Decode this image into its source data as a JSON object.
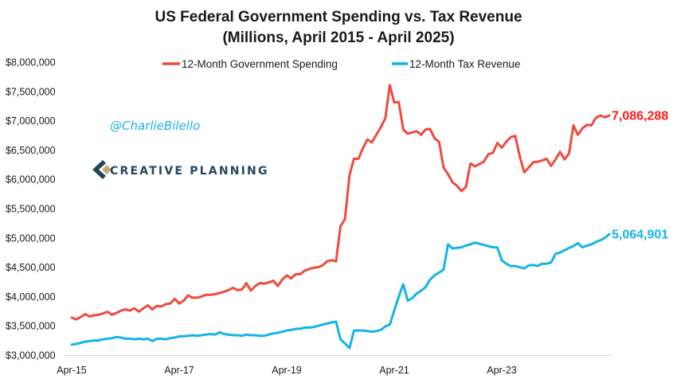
{
  "chart_data": {
    "type": "line",
    "title": "US Federal Government Spending vs. Tax Revenue",
    "subtitle": "(Millions, April 2015 - April 2025)",
    "xlabel": "",
    "ylabel": "",
    "x_tick_labels": [
      "Apr-15",
      "Apr-17",
      "Apr-19",
      "Apr-21",
      "Apr-23"
    ],
    "y_tick_labels": [
      "$3,000,000",
      "$3,500,000",
      "$4,000,000",
      "$4,500,000",
      "$5,000,000",
      "$5,500,000",
      "$6,000,000",
      "$6,500,000",
      "$7,000,000",
      "$7,500,000",
      "$8,000,000"
    ],
    "ylim": [
      3000000,
      8000000
    ],
    "x_range": [
      "2015-04",
      "2025-04"
    ],
    "frequency": "monthly",
    "grid": false,
    "legend_position": "top",
    "series": [
      {
        "name": "12-Month Government Spending",
        "color": "#f04a3e",
        "last_value_label": "7,086,288",
        "label_color": "#ff1a1a",
        "values": [
          3640000,
          3610000,
          3650000,
          3700000,
          3660000,
          3680000,
          3690000,
          3710000,
          3740000,
          3690000,
          3720000,
          3760000,
          3780000,
          3760000,
          3800000,
          3740000,
          3800000,
          3850000,
          3780000,
          3840000,
          3830000,
          3870000,
          3880000,
          3960000,
          3880000,
          3930000,
          4020000,
          3980000,
          3980000,
          4000000,
          4030000,
          4030000,
          4040000,
          4060000,
          4080000,
          4110000,
          4150000,
          4110000,
          4120000,
          4230000,
          4100000,
          4180000,
          4230000,
          4220000,
          4240000,
          4270000,
          4180000,
          4290000,
          4360000,
          4310000,
          4380000,
          4380000,
          4440000,
          4470000,
          4490000,
          4500000,
          4530000,
          4600000,
          4620000,
          4600000,
          5200000,
          5320000,
          6070000,
          6350000,
          6350000,
          6530000,
          6680000,
          6630000,
          6760000,
          6890000,
          7040000,
          7610000,
          7310000,
          7320000,
          6850000,
          6780000,
          6800000,
          6820000,
          6760000,
          6850000,
          6860000,
          6700000,
          6640000,
          6200000,
          6090000,
          5950000,
          5890000,
          5800000,
          5870000,
          6270000,
          6220000,
          6260000,
          6300000,
          6430000,
          6450000,
          6620000,
          6540000,
          6640000,
          6720000,
          6740000,
          6400000,
          6120000,
          6200000,
          6290000,
          6300000,
          6320000,
          6350000,
          6230000,
          6340000,
          6470000,
          6340000,
          6440000,
          6920000,
          6760000,
          6870000,
          6930000,
          6920000,
          7050000,
          7090000,
          7060000,
          7086288
        ]
      },
      {
        "name": "12-Month Tax Revenue",
        "color": "#14b4e8",
        "last_value_label": "5,064,901",
        "label_color": "#14b4e8",
        "values": [
          3180000,
          3190000,
          3210000,
          3230000,
          3240000,
          3250000,
          3250000,
          3270000,
          3280000,
          3290000,
          3310000,
          3300000,
          3280000,
          3280000,
          3270000,
          3280000,
          3270000,
          3280000,
          3240000,
          3280000,
          3280000,
          3270000,
          3290000,
          3300000,
          3320000,
          3320000,
          3330000,
          3340000,
          3330000,
          3340000,
          3350000,
          3360000,
          3350000,
          3390000,
          3360000,
          3350000,
          3340000,
          3340000,
          3330000,
          3350000,
          3340000,
          3340000,
          3330000,
          3330000,
          3350000,
          3370000,
          3380000,
          3400000,
          3420000,
          3430000,
          3450000,
          3450000,
          3470000,
          3470000,
          3480000,
          3500000,
          3520000,
          3540000,
          3560000,
          3570000,
          3270000,
          3200000,
          3120000,
          3420000,
          3420000,
          3420000,
          3410000,
          3400000,
          3410000,
          3430000,
          3490000,
          3520000,
          3760000,
          4000000,
          4210000,
          3930000,
          3970000,
          4050000,
          4100000,
          4160000,
          4290000,
          4360000,
          4410000,
          4460000,
          4890000,
          4820000,
          4830000,
          4840000,
          4870000,
          4890000,
          4920000,
          4900000,
          4880000,
          4860000,
          4840000,
          4840000,
          4620000,
          4560000,
          4520000,
          4520000,
          4500000,
          4480000,
          4530000,
          4540000,
          4520000,
          4560000,
          4560000,
          4580000,
          4730000,
          4750000,
          4790000,
          4830000,
          4860000,
          4910000,
          4840000,
          4870000,
          4890000,
          4930000,
          4960000,
          5000000,
          5064901
        ]
      }
    ]
  },
  "annotations": {
    "handle": "@CharlieBilello",
    "brand_name": "CREATIVE PLANNING"
  }
}
